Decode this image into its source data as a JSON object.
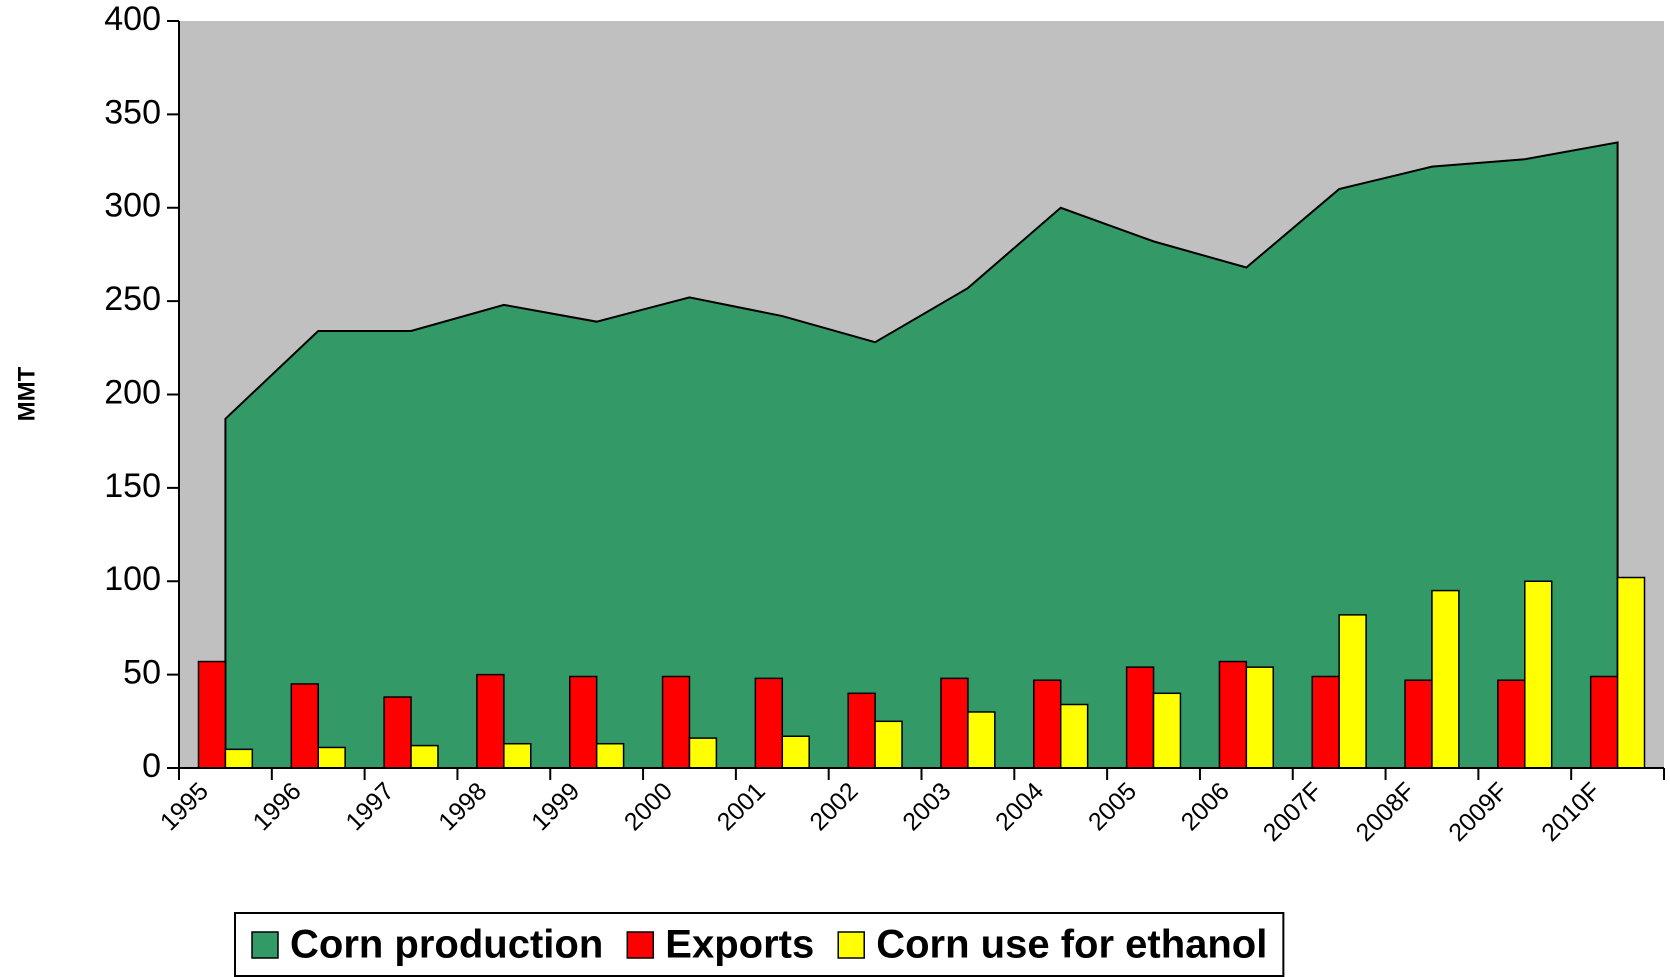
{
  "chart_data": {
    "type": "bar",
    "y_label": "MMT",
    "categories": [
      "1995",
      "1996",
      "1997",
      "1998",
      "1999",
      "2000",
      "2001",
      "2002",
      "2003",
      "2004",
      "2005",
      "2006",
      "2007F",
      "2008F",
      "2009F",
      "2010F"
    ],
    "series": [
      {
        "name": "Corn production",
        "type": "area",
        "color": "#339966",
        "values": [
          187,
          234,
          234,
          248,
          239,
          252,
          242,
          228,
          257,
          300,
          282,
          268,
          310,
          322,
          326,
          335
        ]
      },
      {
        "name": "Exports",
        "type": "bar",
        "color": "#ff0000",
        "values": [
          57,
          45,
          38,
          50,
          49,
          49,
          48,
          40,
          48,
          47,
          54,
          57,
          49,
          47,
          47,
          49
        ]
      },
      {
        "name": "Corn use for ethanol",
        "type": "bar",
        "color": "#ffff00",
        "values": [
          10,
          11,
          12,
          13,
          13,
          16,
          17,
          25,
          30,
          34,
          40,
          54,
          82,
          95,
          100,
          102
        ]
      }
    ],
    "ylim": [
      0,
      400
    ],
    "yticks": [
      0,
      50,
      100,
      150,
      200,
      250,
      300,
      350,
      400
    ],
    "plot_background": "#c0c0c0",
    "legend": "bottom"
  }
}
